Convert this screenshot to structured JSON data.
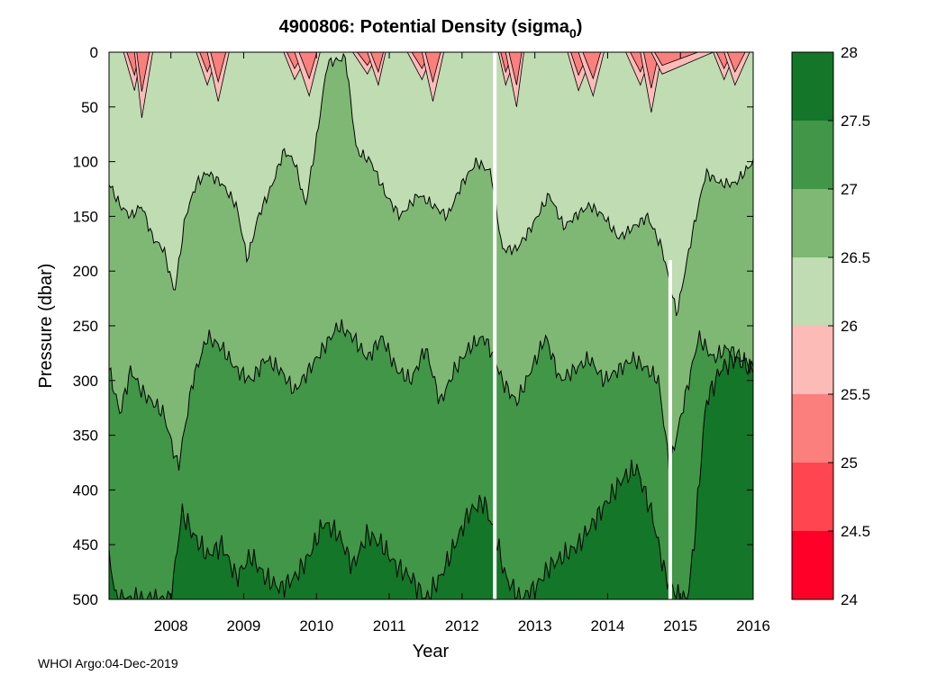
{
  "chart_data": {
    "type": "heatmap",
    "subtype": "filled-contour",
    "title": {
      "main": "4900806: Potential Density (sigma",
      "subscript": "0",
      "close": ")"
    },
    "xlabel": "Year",
    "ylabel": "Pressure (dbar)",
    "footer": "WHOI Argo:04-Dec-2019",
    "xlim": [
      2007.15,
      2016.0
    ],
    "ylim": [
      0,
      500
    ],
    "y_reversed": true,
    "x_ticks": [
      2008,
      2009,
      2010,
      2011,
      2012,
      2013,
      2014,
      2015,
      2016
    ],
    "x_tick_labels": [
      "2008",
      "2009",
      "2010",
      "2011",
      "2012",
      "2013",
      "2014",
      "2015",
      "2016"
    ],
    "y_ticks": [
      0,
      50,
      100,
      150,
      200,
      250,
      300,
      350,
      400,
      450,
      500
    ],
    "y_tick_labels": [
      "0",
      "50",
      "100",
      "150",
      "200",
      "250",
      "300",
      "350",
      "400",
      "450",
      "500"
    ],
    "colorbar": {
      "ticks": [
        24,
        24.5,
        25,
        25.5,
        26,
        26.5,
        27,
        27.5,
        28
      ],
      "tick_labels": [
        "24",
        "24.5",
        "25",
        "25.5",
        "26",
        "26.5",
        "27",
        "27.5",
        "28"
      ],
      "bins": [
        {
          "from": 24.0,
          "to": 24.5,
          "color": "#ff0029"
        },
        {
          "from": 24.5,
          "to": 25.0,
          "color": "#ff4550"
        },
        {
          "from": 25.0,
          "to": 25.5,
          "color": "#fb7f7d"
        },
        {
          "from": 25.5,
          "to": 26.0,
          "color": "#fdbbb8"
        },
        {
          "from": 26.0,
          "to": 26.5,
          "color": "#bfdcb2"
        },
        {
          "from": 26.5,
          "to": 27.0,
          "color": "#7fb874"
        },
        {
          "from": 27.0,
          "to": 27.5,
          "color": "#419647"
        },
        {
          "from": 27.5,
          "to": 28.0,
          "color": "#147628"
        }
      ]
    },
    "contours": [
      {
        "level": 26.0,
        "depth_points": [
          [
            2007.2,
            3
          ],
          [
            2007.35,
            15
          ],
          [
            2007.5,
            35
          ],
          [
            2007.6,
            60
          ],
          [
            2007.75,
            8
          ],
          [
            2008.35,
            4
          ],
          [
            2008.5,
            30
          ],
          [
            2008.65,
            45
          ],
          [
            2008.8,
            10
          ],
          [
            2009.55,
            5
          ],
          [
            2009.7,
            25
          ],
          [
            2009.9,
            40
          ],
          [
            2010.05,
            8
          ],
          [
            2010.5,
            5
          ],
          [
            2010.7,
            20
          ],
          [
            2010.85,
            30
          ],
          [
            2010.95,
            5
          ],
          [
            2011.25,
            3
          ],
          [
            2011.45,
            25
          ],
          [
            2011.6,
            45
          ],
          [
            2011.75,
            15
          ],
          [
            2012.5,
            3
          ],
          [
            2012.6,
            30
          ],
          [
            2012.75,
            50
          ],
          [
            2012.85,
            5
          ],
          [
            2013.45,
            3
          ],
          [
            2013.6,
            35
          ],
          [
            2013.8,
            40
          ],
          [
            2013.95,
            5
          ],
          [
            2014.25,
            4
          ],
          [
            2014.45,
            30
          ],
          [
            2014.6,
            55
          ],
          [
            2014.75,
            20
          ],
          [
            2015.45,
            3
          ],
          [
            2015.6,
            25
          ],
          [
            2015.75,
            30
          ],
          [
            2015.95,
            5
          ]
        ]
      },
      {
        "level": 26.5,
        "depth_points": [
          [
            2007.15,
            120
          ],
          [
            2007.3,
            140
          ],
          [
            2007.45,
            150
          ],
          [
            2007.6,
            140
          ],
          [
            2007.75,
            170
          ],
          [
            2007.9,
            180
          ],
          [
            2008.05,
            220
          ],
          [
            2008.2,
            150
          ],
          [
            2008.35,
            120
          ],
          [
            2008.5,
            110
          ],
          [
            2008.7,
            120
          ],
          [
            2008.9,
            140
          ],
          [
            2009.05,
            190
          ],
          [
            2009.2,
            150
          ],
          [
            2009.4,
            120
          ],
          [
            2009.55,
            90
          ],
          [
            2009.7,
            100
          ],
          [
            2009.85,
            140
          ],
          [
            2010.0,
            80
          ],
          [
            2010.15,
            10
          ],
          [
            2010.4,
            5
          ],
          [
            2010.55,
            90
          ],
          [
            2010.75,
            100
          ],
          [
            2010.95,
            130
          ],
          [
            2011.15,
            150
          ],
          [
            2011.4,
            130
          ],
          [
            2011.6,
            140
          ],
          [
            2011.8,
            150
          ],
          [
            2012.0,
            120
          ],
          [
            2012.2,
            100
          ],
          [
            2012.4,
            110
          ],
          [
            2012.55,
            180
          ],
          [
            2012.75,
            180
          ],
          [
            2012.95,
            160
          ],
          [
            2013.2,
            130
          ],
          [
            2013.4,
            160
          ],
          [
            2013.55,
            150
          ],
          [
            2013.75,
            140
          ],
          [
            2013.95,
            150
          ],
          [
            2014.15,
            170
          ],
          [
            2014.35,
            160
          ],
          [
            2014.55,
            150
          ],
          [
            2014.75,
            180
          ],
          [
            2014.95,
            240
          ],
          [
            2015.15,
            170
          ],
          [
            2015.35,
            110
          ],
          [
            2015.55,
            120
          ],
          [
            2015.75,
            120
          ],
          [
            2016.0,
            100
          ]
        ]
      },
      {
        "level": 27.0,
        "depth_points": [
          [
            2007.15,
            290
          ],
          [
            2007.3,
            330
          ],
          [
            2007.45,
            290
          ],
          [
            2007.6,
            310
          ],
          [
            2007.75,
            320
          ],
          [
            2007.9,
            330
          ],
          [
            2008.1,
            380
          ],
          [
            2008.3,
            300
          ],
          [
            2008.5,
            260
          ],
          [
            2008.7,
            270
          ],
          [
            2008.9,
            290
          ],
          [
            2009.1,
            300
          ],
          [
            2009.3,
            280
          ],
          [
            2009.5,
            290
          ],
          [
            2009.7,
            310
          ],
          [
            2009.9,
            290
          ],
          [
            2010.1,
            270
          ],
          [
            2010.3,
            250
          ],
          [
            2010.5,
            260
          ],
          [
            2010.7,
            280
          ],
          [
            2010.9,
            260
          ],
          [
            2011.1,
            290
          ],
          [
            2011.3,
            300
          ],
          [
            2011.5,
            270
          ],
          [
            2011.7,
            320
          ],
          [
            2011.9,
            290
          ],
          [
            2012.1,
            270
          ],
          [
            2012.3,
            260
          ],
          [
            2012.45,
            280
          ],
          [
            2012.55,
            300
          ],
          [
            2012.75,
            320
          ],
          [
            2012.95,
            290
          ],
          [
            2013.15,
            260
          ],
          [
            2013.35,
            300
          ],
          [
            2013.55,
            290
          ],
          [
            2013.75,
            280
          ],
          [
            2013.95,
            300
          ],
          [
            2014.15,
            290
          ],
          [
            2014.35,
            280
          ],
          [
            2014.55,
            290
          ],
          [
            2014.7,
            300
          ],
          [
            2014.85,
            380
          ],
          [
            2015.05,
            320
          ],
          [
            2015.25,
            260
          ],
          [
            2015.45,
            280
          ],
          [
            2015.65,
            270
          ],
          [
            2015.85,
            280
          ],
          [
            2016.0,
            290
          ]
        ]
      },
      {
        "level": 27.5,
        "depth_points": [
          [
            2007.15,
            460
          ],
          [
            2007.25,
            500
          ],
          [
            2007.5,
            500
          ],
          [
            2007.75,
            500
          ],
          [
            2008.0,
            500
          ],
          [
            2008.15,
            420
          ],
          [
            2008.3,
            440
          ],
          [
            2008.5,
            460
          ],
          [
            2008.7,
            450
          ],
          [
            2008.9,
            480
          ],
          [
            2009.1,
            460
          ],
          [
            2009.3,
            480
          ],
          [
            2009.5,
            490
          ],
          [
            2009.7,
            480
          ],
          [
            2009.9,
            460
          ],
          [
            2010.1,
            430
          ],
          [
            2010.3,
            440
          ],
          [
            2010.5,
            470
          ],
          [
            2010.7,
            440
          ],
          [
            2010.9,
            450
          ],
          [
            2011.1,
            470
          ],
          [
            2011.3,
            480
          ],
          [
            2011.5,
            500
          ],
          [
            2011.7,
            480
          ],
          [
            2011.9,
            450
          ],
          [
            2012.1,
            420
          ],
          [
            2012.3,
            410
          ],
          [
            2012.45,
            440
          ],
          [
            2012.6,
            480
          ],
          [
            2012.8,
            500
          ],
          [
            2013.0,
            490
          ],
          [
            2013.2,
            470
          ],
          [
            2013.4,
            460
          ],
          [
            2013.6,
            450
          ],
          [
            2013.8,
            430
          ],
          [
            2014.0,
            410
          ],
          [
            2014.2,
            390
          ],
          [
            2014.4,
            380
          ],
          [
            2014.6,
            420
          ],
          [
            2014.8,
            480
          ],
          [
            2015.0,
            500
          ],
          [
            2015.1,
            500
          ],
          [
            2015.2,
            440
          ],
          [
            2015.35,
            320
          ],
          [
            2015.55,
            290
          ],
          [
            2015.75,
            280
          ],
          [
            2016.0,
            290
          ]
        ]
      }
    ],
    "data_gaps": [
      {
        "x": 2012.45,
        "y_from": 0,
        "y_to": 500
      },
      {
        "x": 2014.86,
        "y_from": 190,
        "y_to": 500
      }
    ]
  }
}
